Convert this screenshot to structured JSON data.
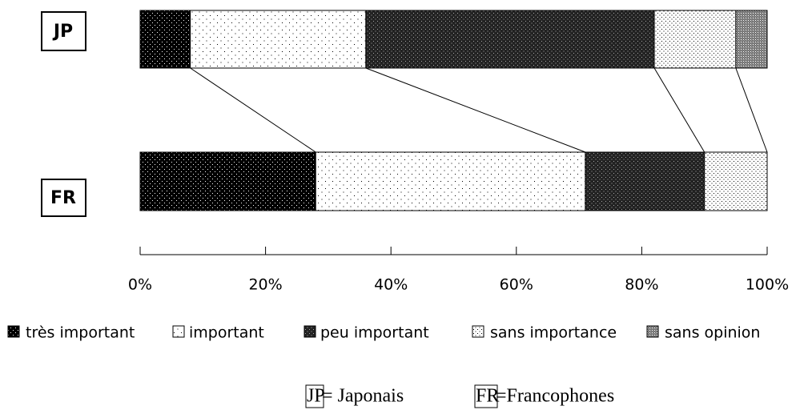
{
  "chart_data": {
    "type": "stacked_barh",
    "categories": [
      "JP",
      "FR"
    ],
    "series": [
      {
        "name": "très important",
        "color": "#000000",
        "values": [
          8,
          28
        ]
      },
      {
        "name": "important",
        "color": "#ffffff",
        "values": [
          28,
          43
        ]
      },
      {
        "name": "peu important",
        "color": "#222222",
        "values": [
          46,
          19
        ]
      },
      {
        "name": "sans importance",
        "color": "#ffffff",
        "values": [
          13,
          10
        ]
      },
      {
        "name": "sans opinion",
        "color": "#777777",
        "values": [
          5,
          0
        ]
      }
    ],
    "xlim": [
      0,
      100
    ],
    "xticks": [
      {
        "value": 0,
        "label": "0%"
      },
      {
        "value": 20,
        "label": "20%"
      },
      {
        "value": 40,
        "label": "40%"
      },
      {
        "value": 60,
        "label": "60%"
      },
      {
        "value": 80,
        "label": "80%"
      },
      {
        "value": 100,
        "label": "100%"
      }
    ],
    "legend": "bottom",
    "footnote": [
      {
        "code": "JP",
        "text": "= Japonais"
      },
      {
        "code": "FR",
        "text": "=Francophones"
      }
    ]
  }
}
